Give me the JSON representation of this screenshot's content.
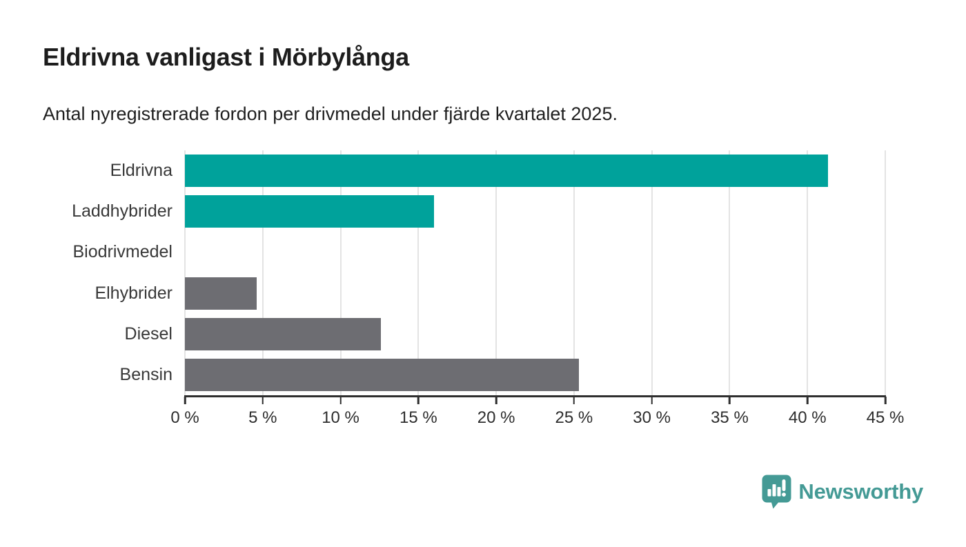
{
  "header": {
    "title": "Eldrivna vanligast i Mörbylånga",
    "subtitle": "Antal nyregistrerade fordon per drivmedel under fjärde kvartalet 2025."
  },
  "chart_data": {
    "type": "bar",
    "orientation": "horizontal",
    "title": "Eldrivna vanligast i Mörbylånga",
    "subtitle": "Antal nyregistrerade fordon per drivmedel under fjärde kvartalet 2025.",
    "categories": [
      "Eldrivna",
      "Laddhybrider",
      "Biodrivmedel",
      "Elhybrider",
      "Diesel",
      "Bensin"
    ],
    "values": [
      41.3,
      16.0,
      0,
      4.6,
      12.6,
      25.3
    ],
    "unit": "%",
    "xlim": [
      0,
      45
    ],
    "x_ticks": [
      0,
      5,
      10,
      15,
      20,
      25,
      30,
      35,
      40,
      45
    ],
    "x_tick_labels": [
      "0 %",
      "5 %",
      "10 %",
      "15 %",
      "20 %",
      "25 %",
      "30 %",
      "35 %",
      "40 %",
      "45 %"
    ],
    "grid": true,
    "legend_position": "none",
    "bar_colors": [
      "#00A29B",
      "#00A29B",
      "#6D6D72",
      "#6D6D72",
      "#6D6D72",
      "#6D6D72"
    ],
    "accent_color": "#00A29B",
    "neutral_color": "#6D6D72",
    "gridline_color": "#E3E3E3",
    "axis_color": "#2E2E2E"
  },
  "branding": {
    "logo_text": "Newsworthy",
    "logo_color": "#449A95",
    "logo_icon": "bar-chart-speech-bubble"
  }
}
